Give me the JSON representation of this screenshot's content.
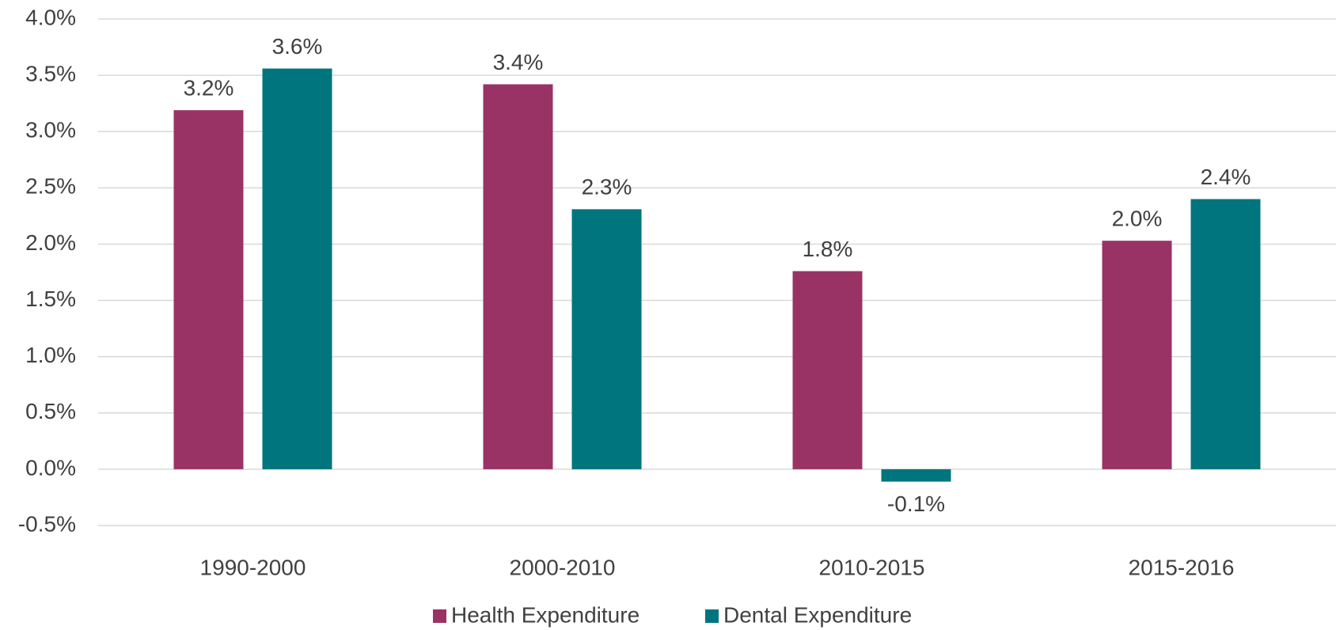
{
  "chart_data": {
    "type": "bar",
    "categories": [
      "1990-2000",
      "2000-2010",
      "2010-2015",
      "2015-2016"
    ],
    "series": [
      {
        "name": "Health Expenditure",
        "color": "#993366",
        "values": [
          3.19,
          3.42,
          1.76,
          2.03
        ],
        "value_labels": [
          "3.2%",
          "3.4%",
          "1.8%",
          "2.0%"
        ]
      },
      {
        "name": "Dental Expenditure",
        "color": "#00757d",
        "values": [
          3.56,
          2.31,
          -0.11,
          2.4
        ],
        "value_labels": [
          "3.6%",
          "2.3%",
          "-0.1%",
          "2.4%"
        ]
      }
    ],
    "ylim": [
      -0.5,
      4.0
    ],
    "yticks": [
      {
        "value": -0.5,
        "label": "-0.5%"
      },
      {
        "value": 0,
        "label": "0.0%"
      },
      {
        "value": 0.5,
        "label": "0.5%"
      },
      {
        "value": 1,
        "label": "1.0%"
      },
      {
        "value": 1.5,
        "label": "1.5%"
      },
      {
        "value": 2,
        "label": "2.0%"
      },
      {
        "value": 2.5,
        "label": "2.5%"
      },
      {
        "value": 3,
        "label": "3.0%"
      },
      {
        "value": 3.5,
        "label": "3.5%"
      },
      {
        "value": 4,
        "label": "4.0%"
      }
    ],
    "grid": true,
    "legend": "bottom"
  }
}
